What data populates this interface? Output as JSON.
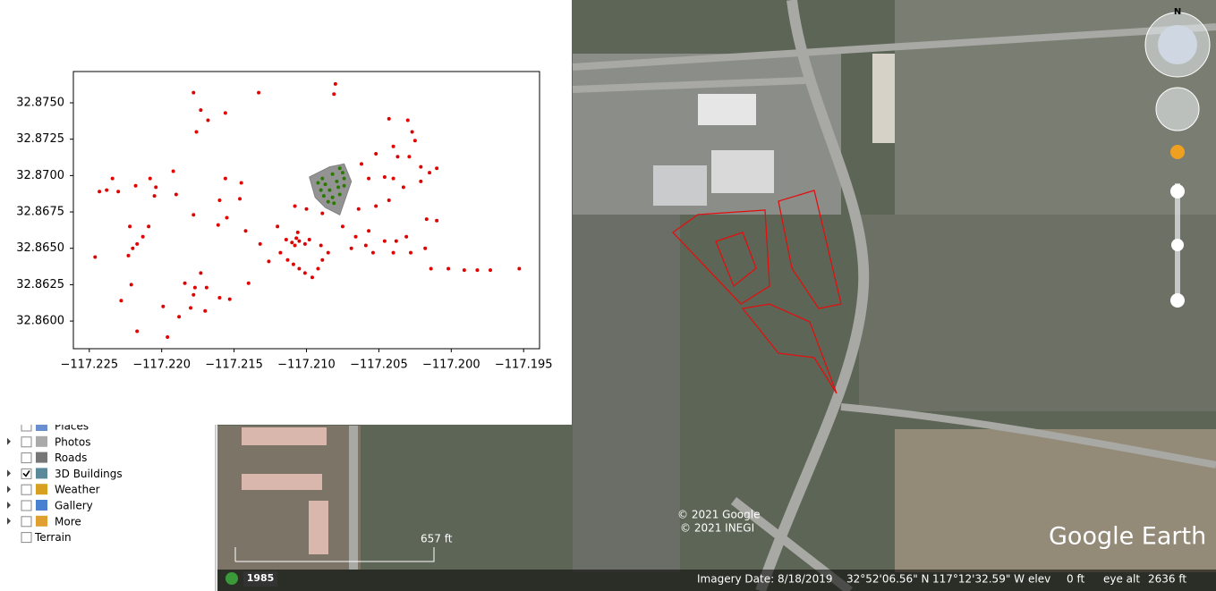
{
  "chart_data": {
    "type": "scatter",
    "xlim": [
      -117.2261,
      -117.1939
    ],
    "ylim": [
      32.8581,
      32.87715
    ],
    "xticks": [
      {
        "value": -117.225,
        "label": "−117.225"
      },
      {
        "value": -117.22,
        "label": "−117.220"
      },
      {
        "value": -117.215,
        "label": "−117.215"
      },
      {
        "value": -117.21,
        "label": "−117.210"
      },
      {
        "value": -117.205,
        "label": "−117.205"
      },
      {
        "value": -117.2,
        "label": "−117.200"
      },
      {
        "value": -117.195,
        "label": "−117.195"
      }
    ],
    "yticks": [
      {
        "value": 32.86,
        "label": "32.8600"
      },
      32.8625,
      {
        "value": 32.865,
        "label": "32.8650"
      },
      32.8675,
      {
        "value": 32.87,
        "label": "32.8700"
      },
      32.8725,
      {
        "value": 32.875,
        "label": "32.8750"
      }
    ],
    "shapes": [
      {
        "color": "#808080",
        "x": [
          -117.2098,
          -117.2084,
          -117.2074,
          -117.2069,
          -117.2077,
          -117.2087,
          -117.2094
        ],
        "y": [
          32.8699,
          32.8706,
          32.8708,
          32.8696,
          32.8673,
          32.8678,
          32.8685
        ]
      }
    ],
    "series": [
      {
        "color": "#e00000",
        "x": [
          -117.2178,
          -117.2173,
          -117.2168,
          -117.2156,
          -117.2133,
          -117.208,
          -117.2081,
          -117.2176,
          -117.2243,
          -117.2238,
          -117.223,
          -117.2234,
          -117.2218,
          -117.2208,
          -117.2204,
          -117.2192,
          -117.219,
          -117.2205,
          -117.2156,
          -117.2145,
          -117.216,
          -117.2146,
          -117.2155,
          -117.2161,
          -117.2142,
          -117.2178,
          -117.2222,
          -117.2209,
          -117.2223,
          -117.222,
          -117.2217,
          -117.2213,
          -117.2246,
          -117.2221,
          -117.2228,
          -117.2217,
          -117.2196,
          -117.2199,
          -117.2188,
          -117.218,
          -117.2178,
          -117.2173,
          -117.217,
          -117.216,
          -117.2184,
          -117.2177,
          -117.2169,
          -117.2153,
          -117.214,
          -117.2114,
          -117.211,
          -117.2107,
          -117.2105,
          -117.2101,
          -117.2098,
          -117.2106,
          -117.2108,
          -117.2113,
          -117.2109,
          -117.2105,
          -117.2101,
          -117.2096,
          -117.2092,
          -117.2089,
          -117.2085,
          -117.209,
          -117.2118,
          -117.2126,
          -117.2132,
          -117.212,
          -117.2108,
          -117.21,
          -117.2089,
          -117.2075,
          -117.2066,
          -117.2059,
          -117.2057,
          -117.2046,
          -117.2038,
          -117.2031,
          -117.2028,
          -117.2018,
          -117.204,
          -117.2054,
          -117.2069,
          -117.2064,
          -117.2052,
          -117.2043,
          -117.204,
          -117.2033,
          -117.2021,
          -117.2017,
          -117.201,
          -117.2062,
          -117.2052,
          -117.2043,
          -117.203,
          -117.2027,
          -117.2025,
          -117.204,
          -117.2037,
          -117.2029,
          -117.2021,
          -117.2015,
          -117.201,
          -117.2057,
          -117.2046,
          -117.2014,
          -117.2002,
          -117.1991,
          -117.1982,
          -117.1973,
          -117.1953
        ],
        "y": [
          32.8757,
          32.8745,
          32.8738,
          32.8743,
          32.8757,
          32.8763,
          32.8756,
          32.873,
          32.8689,
          32.869,
          32.8689,
          32.8698,
          32.8693,
          32.8698,
          32.8692,
          32.8703,
          32.8687,
          32.8686,
          32.8698,
          32.8695,
          32.8683,
          32.8684,
          32.8671,
          32.8666,
          32.8662,
          32.8673,
          32.8665,
          32.8665,
          32.8645,
          32.865,
          32.8653,
          32.8658,
          32.8644,
          32.8625,
          32.8614,
          32.8593,
          32.8589,
          32.861,
          32.8603,
          32.8609,
          32.8618,
          32.8633,
          32.8607,
          32.8616,
          32.8626,
          32.8623,
          32.8623,
          32.8615,
          32.8626,
          32.8656,
          32.8654,
          32.8657,
          32.8655,
          32.8653,
          32.8656,
          32.8661,
          32.8652,
          32.8642,
          32.8639,
          32.8636,
          32.8633,
          32.863,
          32.8636,
          32.8642,
          32.8647,
          32.8652,
          32.8647,
          32.8641,
          32.8653,
          32.8665,
          32.8679,
          32.8677,
          32.8674,
          32.8665,
          32.8658,
          32.8652,
          32.8662,
          32.8655,
          32.8655,
          32.8658,
          32.8647,
          32.865,
          32.8647,
          32.8647,
          32.865,
          32.8677,
          32.8679,
          32.8683,
          32.8698,
          32.8692,
          32.8696,
          32.867,
          32.8669,
          32.8708,
          32.8715,
          32.8739,
          32.8738,
          32.873,
          32.8724,
          32.872,
          32.8713,
          32.8713,
          32.8706,
          32.8702,
          32.8705,
          32.8698,
          32.8699,
          32.8636,
          32.8636,
          32.8635,
          32.8635,
          32.8635,
          32.8636
        ]
      },
      {
        "color": "#2a7a00",
        "x": [
          -117.2092,
          -117.209,
          -117.2088,
          -117.2085,
          -117.2089,
          -117.2087,
          -117.2084,
          -117.2082,
          -117.2081,
          -117.2082,
          -117.2079,
          -117.2078,
          -117.2077,
          -117.2075,
          -117.2074,
          -117.2074,
          -117.2077
        ],
        "y": [
          32.8695,
          32.869,
          32.8686,
          32.8682,
          32.8698,
          32.8694,
          32.869,
          32.8685,
          32.8681,
          32.8701,
          32.8696,
          32.8692,
          32.8687,
          32.8702,
          32.8698,
          32.8693,
          32.8705
        ]
      }
    ]
  },
  "layers": [
    {
      "label": "Places",
      "checked": false,
      "expandable": false
    },
    {
      "label": "Photos",
      "checked": false,
      "expandable": true
    },
    {
      "label": "Roads",
      "checked": false,
      "expandable": false
    },
    {
      "label": "3D Buildings",
      "checked": true,
      "expandable": true
    },
    {
      "label": "Weather",
      "checked": false,
      "expandable": true
    },
    {
      "label": "Gallery",
      "checked": false,
      "expandable": true
    },
    {
      "label": "More",
      "checked": false,
      "expandable": true
    },
    {
      "label": "Terrain",
      "checked": false,
      "expandable": false
    }
  ],
  "map": {
    "compass": "N",
    "scale": "657 ft",
    "copyright": [
      "© 2021 Google",
      "© 2021 INEGI"
    ],
    "logo": "Google Earth",
    "history_year": "1985"
  },
  "status": {
    "imagery_date": "Imagery Date: 8/18/2019",
    "lat": "32°52'06.56\" N",
    "lon": "117°12'32.59\" W",
    "elev_label": "elev",
    "elev": "0 ft",
    "eye_alt_label": "eye alt",
    "eye_alt": "2636 ft"
  }
}
